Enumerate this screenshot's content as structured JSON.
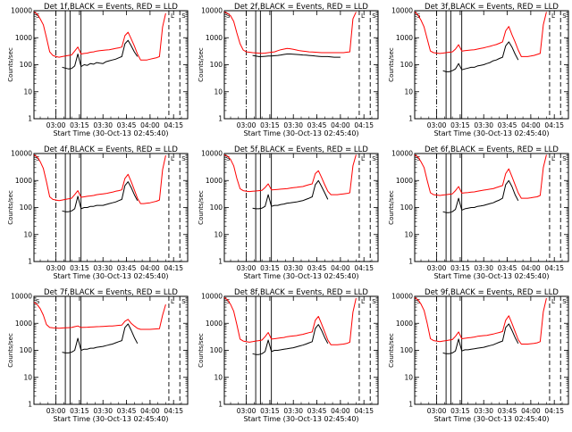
{
  "chart_data": {
    "type": "line",
    "grid": "3x3",
    "shared": {
      "xlabel": "Start Time (30-Oct-13 02:45:40)",
      "ylabel": "Counts/sec",
      "x_ticks": [
        "03:00",
        "03:15",
        "03:30",
        "03:45",
        "04:00",
        "04:15"
      ],
      "y_ticks": [
        "1",
        "10",
        "100",
        "1000",
        "10000"
      ],
      "yscale": "log",
      "ylim": [
        1,
        10000
      ],
      "xlim_minutes_after_start": [
        0,
        98
      ],
      "series_colors": {
        "events": "#000000",
        "lld": "#ff0000"
      },
      "x_minutes": [
        0,
        2,
        4,
        6,
        8,
        10,
        12,
        14,
        16,
        18,
        20,
        22,
        24,
        26,
        28,
        30,
        32,
        34,
        36,
        38,
        40,
        42,
        44,
        46,
        48,
        50,
        52,
        54,
        56,
        58,
        60,
        62,
        64,
        66,
        68,
        70,
        72,
        74,
        76,
        78,
        80,
        82,
        84
      ],
      "markers": [
        {
          "minute": 14,
          "style": "dash-dot"
        },
        {
          "minute": 20,
          "style": "solid"
        },
        {
          "minute": 23,
          "style": "solid"
        },
        {
          "minute": 30,
          "style": "solid"
        },
        {
          "minute": 86,
          "style": "dashed"
        },
        {
          "minute": 93,
          "style": "dashed"
        }
      ],
      "flags_left": [
        "S"
      ],
      "flags_right": [
        "L",
        "S"
      ]
    },
    "panels": [
      {
        "title": "Det 1f,BLACK = Events, RED = LLD",
        "events": [
          null,
          null,
          null,
          null,
          null,
          null,
          null,
          null,
          null,
          80,
          75,
          70,
          72,
          90,
          250,
          85,
          100,
          95,
          110,
          105,
          120,
          115,
          110,
          130,
          140,
          150,
          160,
          180,
          200,
          600,
          800,
          500,
          300,
          200,
          null,
          null,
          null,
          null,
          null,
          null,
          null,
          null,
          null
        ],
        "lld": [
          9000,
          7500,
          5000,
          3000,
          1000,
          300,
          220,
          200,
          190,
          200,
          210,
          220,
          230,
          320,
          450,
          250,
          260,
          270,
          290,
          300,
          320,
          330,
          340,
          350,
          360,
          380,
          400,
          420,
          450,
          1200,
          1600,
          900,
          500,
          250,
          150,
          150,
          150,
          160,
          170,
          180,
          200,
          2500,
          8000
        ]
      },
      {
        "title": "Det 2f,BLACK = Events, RED = LLD",
        "events": [
          null,
          null,
          null,
          null,
          null,
          null,
          null,
          null,
          null,
          220,
          210,
          200,
          200,
          205,
          210,
          210,
          215,
          220,
          230,
          240,
          250,
          250,
          245,
          240,
          235,
          230,
          225,
          220,
          215,
          210,
          205,
          200,
          200,
          200,
          195,
          190,
          190,
          190,
          null,
          null,
          null,
          null,
          null
        ],
        "lld": [
          9000,
          8000,
          6500,
          4000,
          1500,
          600,
          350,
          300,
          290,
          280,
          275,
          270,
          265,
          270,
          280,
          290,
          300,
          330,
          360,
          380,
          400,
          390,
          370,
          350,
          330,
          320,
          310,
          300,
          295,
          290,
          285,
          280,
          280,
          280,
          280,
          280,
          280,
          280,
          280,
          290,
          300,
          5000,
          9000
        ]
      },
      {
        "title": "Det 3f,BLACK = Events, RED = LLD",
        "events": [
          null,
          null,
          null,
          null,
          null,
          null,
          null,
          null,
          null,
          60,
          55,
          55,
          60,
          70,
          110,
          65,
          70,
          75,
          80,
          80,
          90,
          95,
          100,
          110,
          120,
          140,
          150,
          170,
          190,
          500,
          700,
          450,
          250,
          150,
          null,
          null,
          null,
          null,
          null,
          null,
          null,
          null,
          null
        ],
        "lld": [
          9000,
          7000,
          4500,
          2500,
          900,
          320,
          280,
          270,
          260,
          270,
          280,
          290,
          300,
          380,
          550,
          320,
          330,
          340,
          350,
          360,
          380,
          400,
          420,
          450,
          480,
          520,
          560,
          620,
          700,
          1800,
          2600,
          1300,
          700,
          350,
          200,
          200,
          200,
          210,
          220,
          240,
          260,
          3000,
          9000
        ]
      },
      {
        "title": "Det 4f,BLACK = Events, RED = LLD",
        "events": [
          null,
          null,
          null,
          null,
          null,
          null,
          null,
          null,
          null,
          75,
          70,
          70,
          75,
          90,
          260,
          90,
          100,
          100,
          110,
          110,
          120,
          120,
          120,
          130,
          140,
          150,
          160,
          180,
          200,
          650,
          900,
          550,
          300,
          180,
          null,
          null,
          null,
          null,
          null,
          null,
          null,
          null,
          null
        ],
        "lld": [
          9000,
          7500,
          5000,
          2800,
          900,
          250,
          200,
          190,
          180,
          190,
          200,
          210,
          220,
          300,
          420,
          240,
          250,
          260,
          270,
          280,
          300,
          310,
          320,
          330,
          350,
          370,
          400,
          420,
          450,
          1200,
          1700,
          900,
          450,
          220,
          140,
          140,
          145,
          150,
          160,
          170,
          190,
          2500,
          8500
        ]
      },
      {
        "title": "Det 5f,BLACK = Events, RED = LLD",
        "events": [
          null,
          null,
          null,
          null,
          null,
          null,
          null,
          null,
          null,
          95,
          90,
          90,
          95,
          110,
          300,
          110,
          120,
          120,
          130,
          135,
          145,
          150,
          155,
          160,
          170,
          180,
          200,
          220,
          250,
          700,
          1000,
          600,
          350,
          200,
          null,
          null,
          null,
          null,
          null,
          null,
          null,
          null,
          null
        ],
        "lld": [
          9000,
          8000,
          6000,
          3500,
          1200,
          500,
          420,
          400,
          390,
          400,
          410,
          420,
          430,
          550,
          750,
          450,
          460,
          470,
          480,
          490,
          500,
          520,
          540,
          560,
          580,
          600,
          650,
          700,
          750,
          1800,
          2300,
          1300,
          700,
          400,
          300,
          300,
          300,
          310,
          320,
          330,
          350,
          3500,
          9000
        ]
      },
      {
        "title": "Det 6f,BLACK = Events, RED = LLD",
        "events": [
          null,
          null,
          null,
          null,
          null,
          null,
          null,
          null,
          null,
          70,
          65,
          65,
          70,
          85,
          220,
          80,
          90,
          95,
          100,
          100,
          110,
          115,
          120,
          130,
          140,
          150,
          170,
          190,
          220,
          700,
          1000,
          600,
          300,
          180,
          null,
          null,
          null,
          null,
          null,
          null,
          null,
          null,
          null
        ],
        "lld": [
          9000,
          7500,
          5000,
          3000,
          1000,
          350,
          300,
          290,
          280,
          290,
          300,
          310,
          320,
          420,
          600,
          340,
          350,
          360,
          370,
          380,
          400,
          420,
          440,
          460,
          480,
          500,
          550,
          600,
          650,
          1800,
          2700,
          1400,
          700,
          350,
          220,
          220,
          220,
          230,
          240,
          250,
          280,
          3000,
          9000
        ]
      },
      {
        "title": "Det 7f,BLACK = Events, RED = LLD",
        "events": [
          null,
          null,
          null,
          null,
          null,
          null,
          null,
          null,
          null,
          85,
          80,
          80,
          85,
          100,
          280,
          100,
          110,
          110,
          120,
          120,
          130,
          135,
          140,
          150,
          160,
          170,
          190,
          210,
          230,
          700,
          950,
          550,
          300,
          180,
          null,
          null,
          null,
          null,
          null,
          null,
          null,
          null,
          null
        ],
        "lld": [
          6000,
          5000,
          3500,
          2000,
          900,
          700,
          680,
          670,
          660,
          670,
          680,
          690,
          700,
          750,
          800,
          700,
          710,
          720,
          730,
          740,
          750,
          760,
          770,
          780,
          790,
          800,
          820,
          840,
          860,
          1200,
          1400,
          1000,
          800,
          650,
          600,
          600,
          600,
          600,
          610,
          620,
          630,
          2000,
          5000
        ]
      },
      {
        "title": "Det 8f,BLACK = Events, RED = LLD",
        "events": [
          null,
          null,
          null,
          null,
          null,
          null,
          null,
          null,
          null,
          75,
          70,
          70,
          75,
          90,
          240,
          90,
          100,
          100,
          105,
          110,
          115,
          120,
          125,
          135,
          145,
          155,
          170,
          190,
          210,
          650,
          900,
          550,
          300,
          180,
          null,
          null,
          null,
          null,
          null,
          null,
          null,
          null,
          null
        ],
        "lld": [
          9000,
          7500,
          5000,
          2800,
          900,
          260,
          220,
          210,
          200,
          210,
          220,
          230,
          240,
          320,
          460,
          260,
          270,
          280,
          290,
          300,
          320,
          330,
          340,
          350,
          370,
          390,
          420,
          450,
          480,
          1300,
          1800,
          950,
          480,
          240,
          160,
          160,
          160,
          165,
          170,
          180,
          200,
          2600,
          8500
        ]
      },
      {
        "title": "Det 9f,BLACK = Events, RED = LLD",
        "events": [
          null,
          null,
          null,
          null,
          null,
          null,
          null,
          null,
          null,
          80,
          75,
          75,
          80,
          95,
          260,
          95,
          105,
          105,
          110,
          115,
          120,
          125,
          130,
          140,
          150,
          160,
          180,
          200,
          220,
          700,
          950,
          550,
          300,
          180,
          null,
          null,
          null,
          null,
          null,
          null,
          null,
          null,
          null
        ],
        "lld": [
          9000,
          7500,
          5200,
          3000,
          1000,
          270,
          230,
          220,
          210,
          220,
          230,
          240,
          250,
          330,
          480,
          270,
          280,
          290,
          300,
          310,
          330,
          340,
          350,
          360,
          380,
          400,
          430,
          460,
          500,
          1300,
          1900,
          1000,
          500,
          250,
          170,
          170,
          170,
          175,
          180,
          190,
          210,
          2700,
          8500
        ]
      }
    ]
  }
}
